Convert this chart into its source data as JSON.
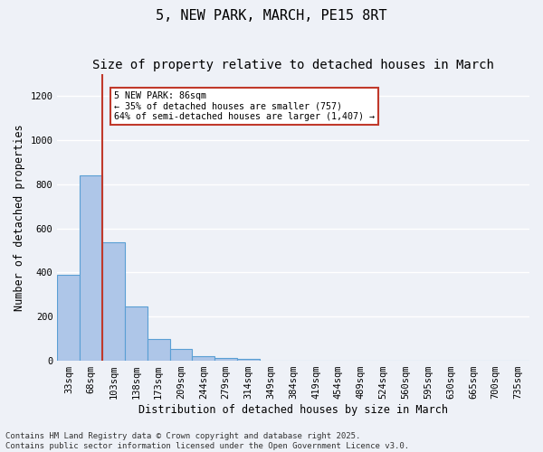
{
  "title": "5, NEW PARK, MARCH, PE15 8RT",
  "subtitle": "Size of property relative to detached houses in March",
  "xlabel": "Distribution of detached houses by size in March",
  "ylabel": "Number of detached properties",
  "bins": [
    "33sqm",
    "68sqm",
    "103sqm",
    "138sqm",
    "173sqm",
    "209sqm",
    "244sqm",
    "279sqm",
    "314sqm",
    "349sqm",
    "384sqm",
    "419sqm",
    "454sqm",
    "489sqm",
    "524sqm",
    "560sqm",
    "595sqm",
    "630sqm",
    "665sqm",
    "700sqm",
    "735sqm"
  ],
  "bar_heights": [
    390,
    840,
    535,
    246,
    100,
    55,
    22,
    12,
    10,
    0,
    0,
    0,
    0,
    0,
    0,
    0,
    0,
    0,
    0,
    0,
    0
  ],
  "bar_color": "#aec6e8",
  "bar_edge_color": "#5a9fd4",
  "vline_color": "#c0392b",
  "vline_pos": 1.5,
  "ylim": [
    0,
    1300
  ],
  "yticks": [
    0,
    200,
    400,
    600,
    800,
    1000,
    1200
  ],
  "annotation_title": "5 NEW PARK: 86sqm",
  "annotation_line1": "← 35% of detached houses are smaller (757)",
  "annotation_line2": "64% of semi-detached houses are larger (1,407) →",
  "annotation_box_color": "#ffffff",
  "annotation_border_color": "#c0392b",
  "footer_line1": "Contains HM Land Registry data © Crown copyright and database right 2025.",
  "footer_line2": "Contains public sector information licensed under the Open Government Licence v3.0.",
  "background_color": "#eef1f7",
  "plot_bg_color": "#eef1f7",
  "grid_color": "#ffffff",
  "title_fontsize": 11,
  "subtitle_fontsize": 10,
  "label_fontsize": 8.5,
  "tick_fontsize": 7.5,
  "footer_fontsize": 6.5
}
